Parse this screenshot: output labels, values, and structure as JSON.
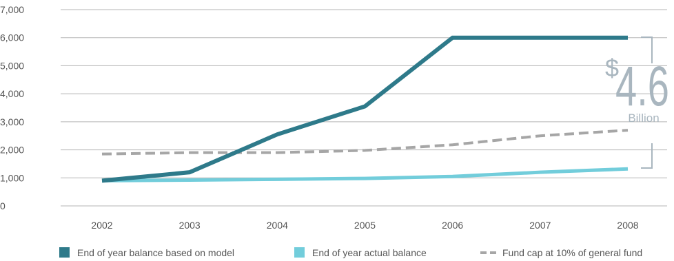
{
  "chart_data": {
    "type": "line",
    "x": [
      "2002",
      "2003",
      "2004",
      "2005",
      "2006",
      "2007",
      "2008"
    ],
    "ylim": [
      0,
      7000
    ],
    "yticks": [
      "0",
      "1,000",
      "2,000",
      "3,000",
      "4,000",
      "5,000",
      "6,000",
      "7,000"
    ],
    "ytick_values": [
      0,
      1000,
      2000,
      3000,
      4000,
      5000,
      6000,
      7000
    ],
    "grid": true,
    "legend_position": "bottom",
    "series": [
      {
        "name": "End of year balance based on model",
        "color": "#2e7a8a",
        "style": "solid",
        "values": [
          900,
          1200,
          2550,
          3550,
          6000,
          6000,
          6000
        ]
      },
      {
        "name": "End of year actual balance",
        "color": "#72cddb",
        "style": "solid",
        "values": [
          900,
          920,
          950,
          980,
          1050,
          1200,
          1320
        ]
      },
      {
        "name": "Fund cap at 10% of general fund",
        "color": "#a6a6a6",
        "style": "dashed",
        "values": [
          1850,
          1900,
          1900,
          1980,
          2180,
          2500,
          2700
        ]
      }
    ],
    "annotation": {
      "currency": "$",
      "value": "4.6",
      "unit": "Billion",
      "color": "#a9b6bf"
    }
  }
}
